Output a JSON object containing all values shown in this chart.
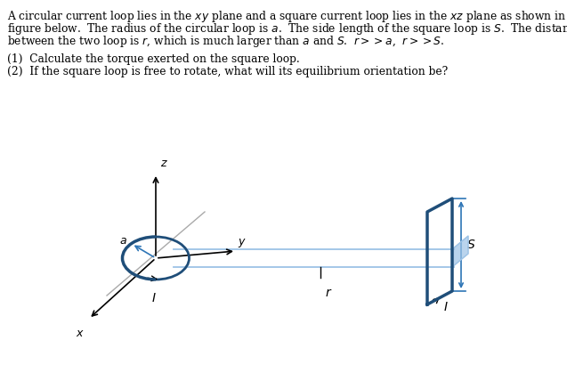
{
  "fig_bg": "#ffffff",
  "loop_color": "#1f4e79",
  "line_color": "#9dc3e6",
  "square_color": "#1f4e79",
  "arrow_color": "#2e75b6",
  "text_color": "#000000",
  "axis_color": "#808080",
  "text_lines": [
    "A circular current loop lies in the $xy$ plane and a square current loop lies in the $xz$ plane as shown in the",
    "figure below.  The radius of the circular loop is $a$.  The side length of the square loop is $S$.  The distance",
    "between the two loop is $r$, which is much larger than $a$ and $S$.  $r$$>>$$a$,  $r$$>>$$S$."
  ],
  "q1": "(1)  Calculate the torque exerted on the square loop.",
  "q2": "(2)  If the square loop is free to rotate, what will its equilibrium orientation be?"
}
